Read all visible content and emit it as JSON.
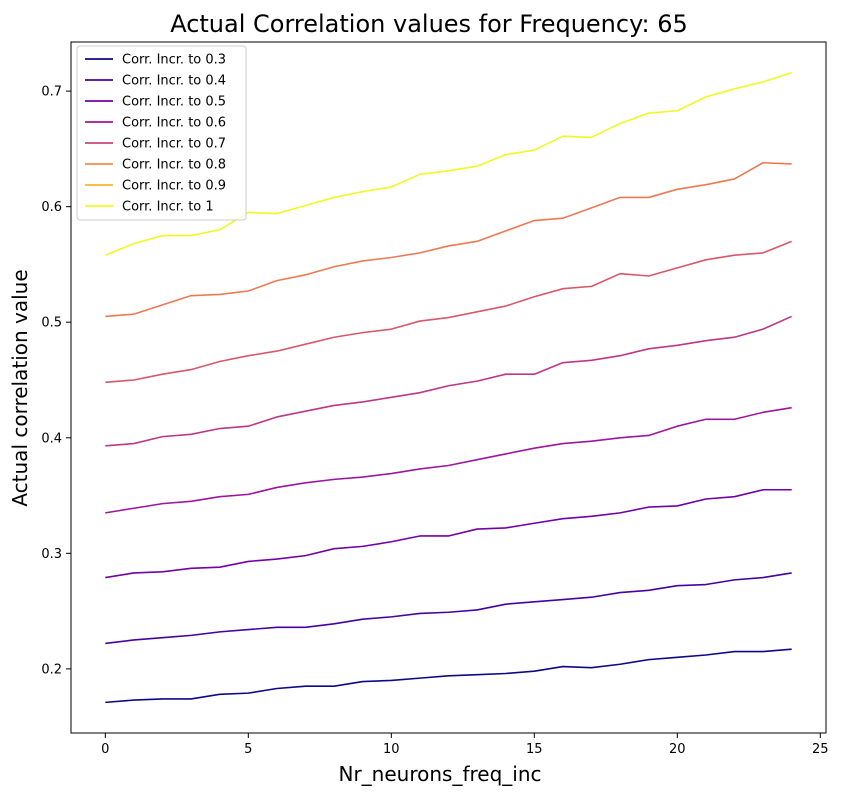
{
  "chart_data": {
    "type": "line",
    "title": "Actual Correlation values for Frequency:  65",
    "xlabel": "Nr_neurons_freq_inc",
    "ylabel": "Actual correlation value",
    "xlim": [
      -1.2,
      25.2
    ],
    "ylim": [
      0.1445,
      0.7425
    ],
    "xticks": [
      0,
      5,
      10,
      15,
      20,
      25
    ],
    "yticks": [
      0.2,
      0.3,
      0.4,
      0.5,
      0.6,
      0.7
    ],
    "grid": false,
    "legend_position": "top-left",
    "x": [
      0,
      1,
      2,
      3,
      4,
      5,
      6,
      7,
      8,
      9,
      10,
      11,
      12,
      13,
      14,
      15,
      16,
      17,
      18,
      19,
      20,
      21,
      22,
      23,
      24
    ],
    "series": [
      {
        "name": "Corr. Incr. to 0.3",
        "color": "#0d0887",
        "values": [
          0.171,
          0.173,
          0.174,
          0.174,
          0.178,
          0.179,
          0.183,
          0.185,
          0.185,
          0.189,
          0.19,
          0.192,
          0.194,
          0.195,
          0.196,
          0.198,
          0.202,
          0.201,
          0.204,
          0.208,
          0.21,
          0.212,
          0.215,
          0.215,
          0.217
        ]
      },
      {
        "name": "Corr. Incr. to 0.4",
        "color": "#46039f",
        "values": [
          0.222,
          0.225,
          0.227,
          0.229,
          0.232,
          0.234,
          0.236,
          0.236,
          0.239,
          0.243,
          0.245,
          0.248,
          0.249,
          0.251,
          0.256,
          0.258,
          0.26,
          0.262,
          0.266,
          0.268,
          0.272,
          0.273,
          0.277,
          0.279,
          0.283
        ]
      },
      {
        "name": "Corr. Incr. to 0.5",
        "color": "#7201a8",
        "values": [
          0.279,
          0.283,
          0.284,
          0.287,
          0.288,
          0.293,
          0.295,
          0.298,
          0.304,
          0.306,
          0.31,
          0.315,
          0.315,
          0.321,
          0.322,
          0.326,
          0.33,
          0.332,
          0.335,
          0.34,
          0.341,
          0.347,
          0.349,
          0.355,
          0.355
        ]
      },
      {
        "name": "Corr. Incr. to 0.6",
        "color": "#9c179e",
        "values": [
          0.335,
          0.339,
          0.343,
          0.345,
          0.349,
          0.351,
          0.357,
          0.361,
          0.364,
          0.366,
          0.369,
          0.373,
          0.376,
          0.381,
          0.386,
          0.391,
          0.395,
          0.397,
          0.4,
          0.402,
          0.41,
          0.416,
          0.416,
          0.422,
          0.426
        ]
      },
      {
        "name": "Corr. Incr. to 0.7",
        "color": "#bd3786",
        "values": [
          0.393,
          0.395,
          0.401,
          0.403,
          0.408,
          0.41,
          0.418,
          0.423,
          0.428,
          0.431,
          0.435,
          0.439,
          0.445,
          0.449,
          0.455,
          0.455,
          0.465,
          0.467,
          0.471,
          0.477,
          0.48,
          0.484,
          0.487,
          0.494,
          0.505
        ]
      },
      {
        "name": "Corr. Incr. to 0.8",
        "color": "#d8576b",
        "values": [
          0.448,
          0.45,
          0.455,
          0.459,
          0.466,
          0.471,
          0.475,
          0.481,
          0.487,
          0.491,
          0.494,
          0.501,
          0.504,
          0.509,
          0.514,
          0.522,
          0.529,
          0.531,
          0.542,
          0.54,
          0.547,
          0.554,
          0.558,
          0.56,
          0.57
        ]
      },
      {
        "name": "Corr. Incr. to 0.9",
        "color": "#ed7953",
        "values": [
          0.505,
          0.507,
          0.515,
          0.523,
          0.524,
          0.527,
          0.536,
          0.541,
          0.548,
          0.553,
          0.556,
          0.56,
          0.566,
          0.57,
          0.579,
          0.588,
          0.59,
          0.599,
          0.608,
          0.608,
          0.615,
          0.619,
          0.624,
          0.638,
          0.637
        ]
      },
      {
        "name": "Corr. Incr. to 1",
        "color": "#f0f921",
        "values": [
          0.558,
          0.568,
          0.575,
          0.575,
          0.58,
          0.595,
          0.594,
          0.601,
          0.608,
          0.613,
          0.617,
          0.628,
          0.631,
          0.635,
          0.645,
          0.649,
          0.661,
          0.66,
          0.672,
          0.681,
          0.683,
          0.695,
          0.702,
          0.708,
          0.716
        ]
      }
    ],
    "legend_colors_override": [
      "#0d0887",
      "#46039f",
      "#7201a8",
      "#9c179e",
      "#cc4778",
      "#f0914a",
      "#fdb42f",
      "#f0f921"
    ]
  }
}
